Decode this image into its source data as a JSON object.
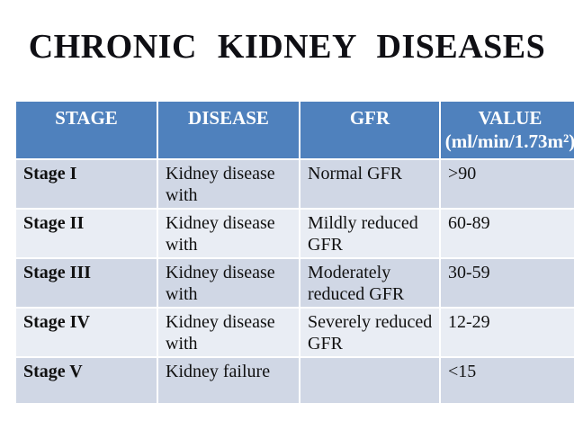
{
  "title": "CHRONIC  KIDNEY  DISEASES",
  "colors": {
    "header_background": "#4f81bd",
    "header_text": "#ffffff",
    "row_band_dark": "#d0d7e5",
    "row_band_light": "#e9edf4",
    "title_text": "#0f0f14",
    "body_text": "#111111",
    "cell_divider": "#ffffff"
  },
  "table": {
    "headers": [
      "STAGE",
      "DISEASE",
      "GFR",
      "VALUE"
    ],
    "value_unit": "(ml/min/1.73m²)",
    "rows": [
      {
        "stage": "Stage I",
        "disease": "Kidney disease with",
        "gfr": "Normal GFR",
        "value": ">90"
      },
      {
        "stage": "Stage II",
        "disease": "Kidney disease with",
        "gfr": "Mildly reduced GFR",
        "value": "60-89"
      },
      {
        "stage": "Stage III",
        "disease": "Kidney disease with",
        "gfr": "Moderately reduced GFR",
        "value": "30-59"
      },
      {
        "stage": "Stage IV",
        "disease": "Kidney disease with",
        "gfr": "Severely reduced GFR",
        "value": "12-29"
      },
      {
        "stage": "Stage V",
        "disease": "Kidney failure",
        "gfr": "",
        "value": "<15"
      }
    ]
  }
}
